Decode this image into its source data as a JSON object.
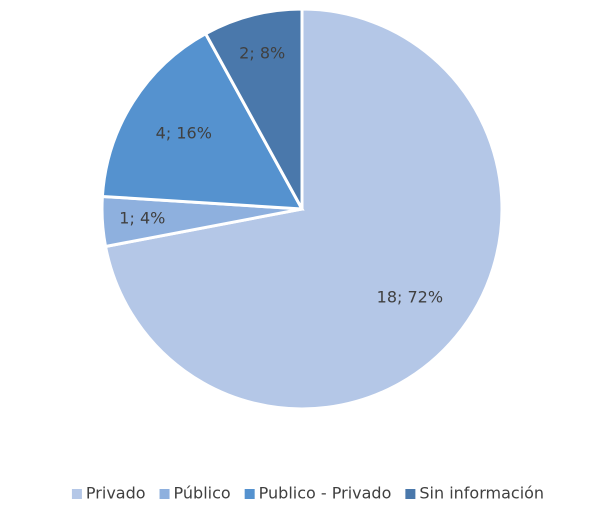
{
  "chart_data": {
    "type": "pie",
    "categories": [
      "Privado",
      "Público",
      "Publico - Privado",
      "Sin información"
    ],
    "values": [
      18,
      1,
      4,
      2
    ],
    "value_labels": [
      "18; 72%",
      "1; 4%",
      "4; 16%",
      "2; 8%"
    ],
    "colors": [
      "#b4c7e7",
      "#8eb0de",
      "#5592cf",
      "#4a78ab"
    ],
    "legend": "bottom"
  }
}
